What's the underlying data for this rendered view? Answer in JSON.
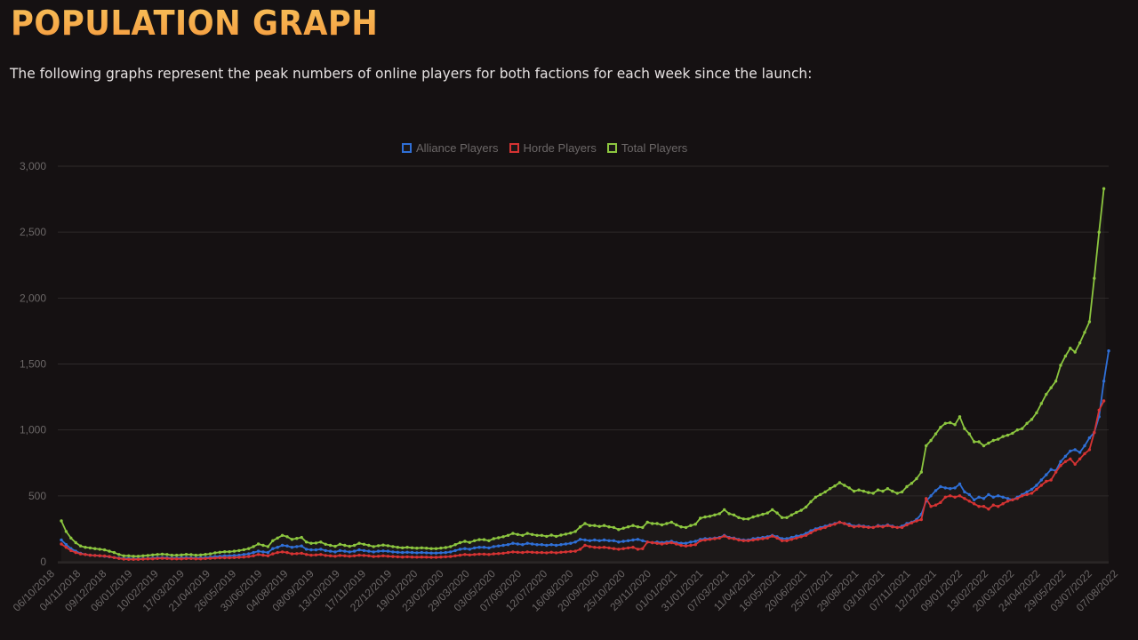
{
  "header": {
    "title": "POPULATION GRAPH",
    "description": "The following graphs represent the peak numbers of online players for both factions for each week since the launch:"
  },
  "legend": {
    "items": [
      {
        "label": "Alliance Players",
        "color": "#2f6fd6"
      },
      {
        "label": "Horde Players",
        "color": "#d63333"
      },
      {
        "label": "Total Players",
        "color": "#8cc63f"
      }
    ]
  },
  "colors": {
    "background": "#151112",
    "plot_background": "#1c1818",
    "grid": "#2e2a2a",
    "axis_text": "#6b6767",
    "alliance": "#2f6fd6",
    "horde": "#d63333",
    "total": "#8cc63f"
  },
  "chart_data": {
    "type": "line",
    "title": "",
    "xlabel": "",
    "ylabel": "",
    "ylim": [
      0,
      3000
    ],
    "yticks": [
      0,
      500,
      1000,
      1500,
      2000,
      2500,
      3000
    ],
    "ytick_labels": [
      "0",
      "500",
      "1,000",
      "1,500",
      "2,000",
      "2,500",
      "3,000"
    ],
    "grid": true,
    "legend_position": "top",
    "x_tick_labels": [
      "06/10/2018",
      "04/11/2018",
      "09/12/2018",
      "06/01/2019",
      "10/02/2019",
      "17/03/2019",
      "21/04/2019",
      "26/05/2019",
      "30/06/2019",
      "04/08/2019",
      "08/09/2019",
      "13/10/2019",
      "17/11/2019",
      "22/12/2019",
      "19/01/2020",
      "23/02/2020",
      "29/03/2020",
      "03/05/2020",
      "07/06/2020",
      "12/07/2020",
      "16/08/2020",
      "20/09/2020",
      "25/10/2020",
      "29/11/2020",
      "01/01/2021",
      "31/01/2021",
      "07/03/2021",
      "11/04/2021",
      "16/05/2021",
      "20/06/2021",
      "25/07/2021",
      "29/08/2021",
      "03/10/2021",
      "07/11/2021",
      "12/12/2021",
      "09/01/2022",
      "13/02/2022",
      "20/03/2022",
      "24/04/2022",
      "29/05/2022",
      "03/07/2022",
      "07/08/2022"
    ],
    "series": [
      {
        "name": "Alliance Players",
        "color": "#2f6fd6",
        "values": [
          165,
          130,
          100,
          80,
          65,
          55,
          50,
          48,
          45,
          42,
          38,
          32,
          28,
          25,
          25,
          22,
          22,
          24,
          25,
          28,
          30,
          32,
          30,
          28,
          28,
          30,
          32,
          30,
          28,
          30,
          32,
          35,
          40,
          42,
          45,
          45,
          48,
          50,
          55,
          60,
          70,
          80,
          75,
          70,
          100,
          110,
          125,
          120,
          110,
          115,
          120,
          95,
          90,
          90,
          95,
          85,
          80,
          75,
          85,
          80,
          75,
          80,
          90,
          85,
          80,
          75,
          80,
          82,
          80,
          75,
          72,
          70,
          72,
          70,
          68,
          70,
          68,
          66,
          66,
          68,
          70,
          75,
          85,
          95,
          100,
          95,
          105,
          110,
          110,
          105,
          115,
          120,
          125,
          130,
          140,
          135,
          130,
          140,
          135,
          130,
          130,
          125,
          130,
          125,
          130,
          135,
          140,
          150,
          170,
          165,
          160,
          165,
          160,
          165,
          160,
          160,
          150,
          155,
          160,
          165,
          170,
          160,
          150,
          145,
          150,
          145,
          150,
          155,
          145,
          140,
          140,
          150,
          155,
          170,
          175,
          175,
          180,
          185,
          200,
          185,
          180,
          170,
          165,
          165,
          175,
          180,
          185,
          190,
          200,
          190,
          175,
          175,
          185,
          195,
          200,
          215,
          235,
          250,
          260,
          270,
          280,
          290,
          300,
          290,
          285,
          270,
          275,
          270,
          265,
          260,
          275,
          270,
          280,
          270,
          260,
          270,
          290,
          300,
          320,
          360,
          460,
          500,
          540,
          570,
          560,
          555,
          560,
          590,
          530,
          510,
          470,
          490,
          480,
          510,
          490,
          500,
          490,
          480,
          470,
          490,
          510,
          530,
          550,
          580,
          620,
          660,
          700,
          690,
          760,
          800,
          840,
          850,
          830,
          880,
          940,
          980,
          1100,
          1370,
          1600
        ]
      },
      {
        "name": "Horde Players",
        "color": "#d63333",
        "values": [
          135,
          110,
          85,
          70,
          60,
          55,
          50,
          48,
          46,
          44,
          40,
          32,
          25,
          20,
          18,
          18,
          18,
          20,
          22,
          22,
          25,
          26,
          25,
          22,
          22,
          22,
          24,
          24,
          22,
          22,
          24,
          26,
          28,
          30,
          30,
          30,
          32,
          34,
          36,
          40,
          45,
          55,
          50,
          45,
          60,
          70,
          75,
          70,
          60,
          62,
          65,
          55,
          50,
          52,
          55,
          48,
          45,
          42,
          48,
          45,
          42,
          45,
          50,
          48,
          45,
          40,
          42,
          45,
          42,
          40,
          38,
          36,
          38,
          36,
          35,
          36,
          35,
          34,
          34,
          36,
          38,
          40,
          45,
          50,
          55,
          52,
          55,
          58,
          58,
          55,
          60,
          62,
          65,
          70,
          75,
          72,
          70,
          75,
          72,
          70,
          70,
          68,
          72,
          68,
          72,
          75,
          78,
          80,
          95,
          125,
          115,
          110,
          108,
          110,
          105,
          100,
          95,
          100,
          105,
          110,
          95,
          100,
          150,
          145,
          140,
          135,
          140,
          145,
          135,
          125,
          120,
          125,
          130,
          160,
          165,
          170,
          175,
          180,
          195,
          180,
          175,
          165,
          160,
          160,
          165,
          170,
          175,
          180,
          195,
          180,
          160,
          160,
          170,
          180,
          190,
          200,
          220,
          240,
          250,
          260,
          275,
          285,
          300,
          290,
          275,
          265,
          270,
          265,
          260,
          260,
          270,
          265,
          275,
          265,
          260,
          260,
          280,
          295,
          310,
          320,
          480,
          420,
          430,
          450,
          490,
          500,
          490,
          500,
          480,
          460,
          440,
          420,
          420,
          400,
          430,
          420,
          440,
          460,
          470,
          480,
          500,
          510,
          520,
          550,
          580,
          610,
          620,
          680,
          730,
          760,
          780,
          740,
          780,
          820,
          850,
          980,
          1150,
          1220
        ]
      },
      {
        "name": "Total Players",
        "color": "#8cc63f",
        "values": [
          310,
          230,
          180,
          145,
          120,
          110,
          105,
          100,
          95,
          90,
          80,
          70,
          55,
          45,
          45,
          42,
          42,
          45,
          48,
          52,
          55,
          58,
          55,
          50,
          50,
          52,
          56,
          54,
          50,
          52,
          56,
          60,
          68,
          72,
          76,
          76,
          80,
          85,
          92,
          100,
          115,
          135,
          125,
          115,
          160,
          180,
          200,
          190,
          170,
          177,
          185,
          150,
          140,
          142,
          150,
          133,
          125,
          117,
          133,
          125,
          117,
          125,
          140,
          133,
          125,
          115,
          122,
          127,
          122,
          115,
          110,
          106,
          110,
          106,
          103,
          106,
          103,
          100,
          100,
          104,
          108,
          115,
          130,
          145,
          155,
          147,
          160,
          168,
          168,
          160,
          175,
          182,
          190,
          200,
          215,
          207,
          200,
          215,
          207,
          200,
          200,
          193,
          202,
          193,
          202,
          210,
          218,
          230,
          265,
          290,
          275,
          275,
          268,
          275,
          265,
          260,
          245,
          255,
          265,
          275,
          265,
          260,
          300,
          290,
          290,
          280,
          290,
          300,
          280,
          265,
          260,
          275,
          285,
          330,
          340,
          345,
          355,
          365,
          395,
          365,
          355,
          335,
          325,
          325,
          340,
          350,
          360,
          370,
          395,
          370,
          335,
          335,
          355,
          375,
          390,
          415,
          455,
          490,
          510,
          530,
          555,
          575,
          600,
          580,
          560,
          535,
          545,
          535,
          525,
          520,
          545,
          535,
          555,
          535,
          520,
          530,
          570,
          595,
          630,
          680,
          880,
          920,
          970,
          1020,
          1050,
          1055,
          1040,
          1100,
          1010,
          970,
          910,
          910,
          880,
          900,
          920,
          930,
          950,
          960,
          975,
          1000,
          1010,
          1050,
          1080,
          1130,
          1200,
          1270,
          1320,
          1370,
          1490,
          1560,
          1620,
          1590,
          1660,
          1740,
          1820,
          2150,
          2500,
          2830
        ]
      }
    ]
  }
}
